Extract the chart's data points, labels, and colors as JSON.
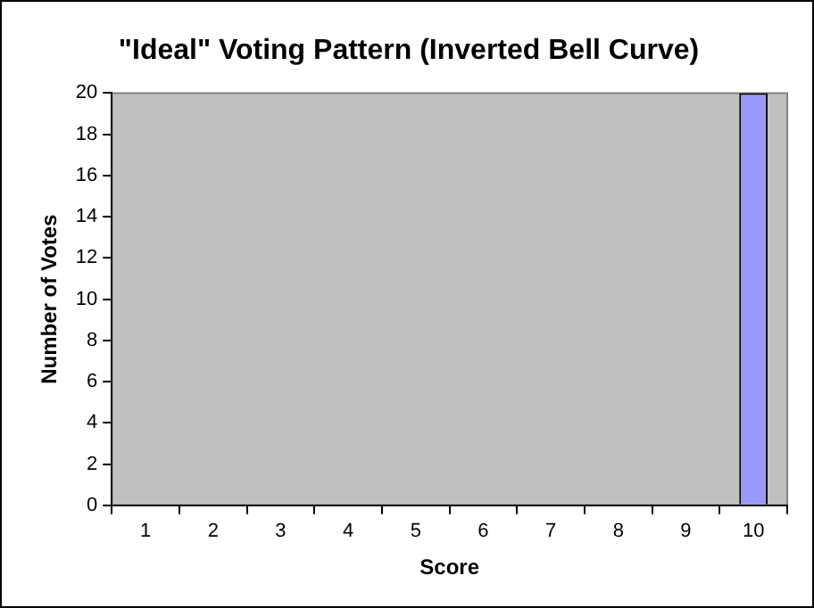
{
  "chart_data": {
    "type": "bar",
    "title": "\"Ideal\" Voting Pattern (Inverted Bell Curve)",
    "xlabel": "Score",
    "ylabel": "Number of Votes",
    "categories": [
      "1",
      "2",
      "3",
      "4",
      "5",
      "6",
      "7",
      "8",
      "9",
      "10"
    ],
    "values": [
      0,
      0,
      0,
      0,
      0,
      0,
      0,
      0,
      0,
      20
    ],
    "color": "#9999ff",
    "ylim": [
      0,
      20
    ],
    "yticks": [
      0,
      2,
      4,
      6,
      8,
      10,
      12,
      14,
      16,
      18,
      20
    ],
    "grid": false,
    "legend": false
  }
}
